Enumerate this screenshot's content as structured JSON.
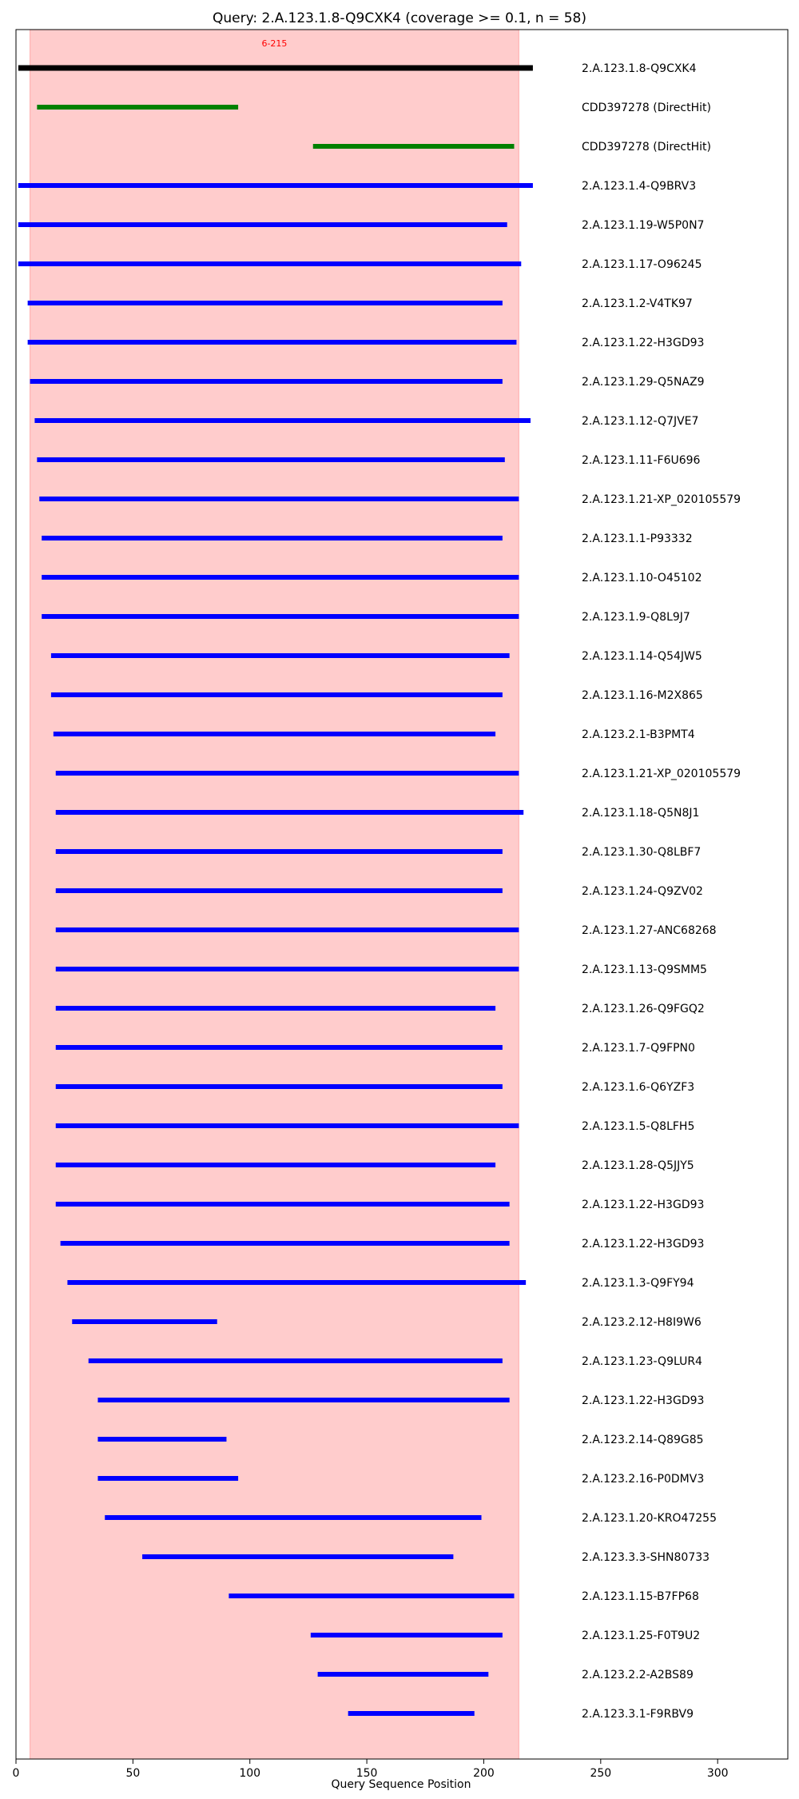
{
  "chart_data": {
    "type": "bar",
    "title": "Query: 2.A.123.1.8-Q9CXK4 (coverage >= 0.1, n = 58)",
    "xlabel": "Query Sequence Position",
    "ylabel": "",
    "xlim": [
      0,
      330
    ],
    "xticks": [
      0,
      50,
      100,
      150,
      200,
      250,
      300
    ],
    "grid": false,
    "highlight_region": {
      "start": 6,
      "end": 215,
      "label": "6-215",
      "color": "#ff0000"
    },
    "colors": {
      "query": "#000000",
      "direct_hit": "#008000",
      "hit": "#0000ff"
    },
    "rows": [
      {
        "label": "2.A.123.1.8-Q9CXK4",
        "start": 1,
        "end": 221,
        "kind": "query"
      },
      {
        "label": "CDD397278 (DirectHit)",
        "start": 9,
        "end": 95,
        "kind": "direct_hit"
      },
      {
        "label": "CDD397278 (DirectHit)",
        "start": 127,
        "end": 213,
        "kind": "direct_hit"
      },
      {
        "label": "2.A.123.1.4-Q9BRV3",
        "start": 1,
        "end": 221,
        "kind": "hit"
      },
      {
        "label": "2.A.123.1.19-W5P0N7",
        "start": 1,
        "end": 210,
        "kind": "hit"
      },
      {
        "label": "2.A.123.1.17-O96245",
        "start": 1,
        "end": 216,
        "kind": "hit"
      },
      {
        "label": "2.A.123.1.2-V4TK97",
        "start": 5,
        "end": 208,
        "kind": "hit"
      },
      {
        "label": "2.A.123.1.22-H3GD93",
        "start": 5,
        "end": 214,
        "kind": "hit"
      },
      {
        "label": "2.A.123.1.29-Q5NAZ9",
        "start": 6,
        "end": 208,
        "kind": "hit"
      },
      {
        "label": "2.A.123.1.12-Q7JVE7",
        "start": 8,
        "end": 220,
        "kind": "hit"
      },
      {
        "label": "2.A.123.1.11-F6U696",
        "start": 9,
        "end": 209,
        "kind": "hit"
      },
      {
        "label": "2.A.123.1.21-XP_020105579",
        "start": 10,
        "end": 215,
        "kind": "hit"
      },
      {
        "label": "2.A.123.1.1-P93332",
        "start": 11,
        "end": 208,
        "kind": "hit"
      },
      {
        "label": "2.A.123.1.10-O45102",
        "start": 11,
        "end": 215,
        "kind": "hit"
      },
      {
        "label": "2.A.123.1.9-Q8L9J7",
        "start": 11,
        "end": 215,
        "kind": "hit"
      },
      {
        "label": "2.A.123.1.14-Q54JW5",
        "start": 15,
        "end": 211,
        "kind": "hit"
      },
      {
        "label": "2.A.123.1.16-M2X865",
        "start": 15,
        "end": 208,
        "kind": "hit"
      },
      {
        "label": "2.A.123.2.1-B3PMT4",
        "start": 16,
        "end": 205,
        "kind": "hit"
      },
      {
        "label": "2.A.123.1.21-XP_020105579",
        "start": 17,
        "end": 215,
        "kind": "hit"
      },
      {
        "label": "2.A.123.1.18-Q5N8J1",
        "start": 17,
        "end": 217,
        "kind": "hit"
      },
      {
        "label": "2.A.123.1.30-Q8LBF7",
        "start": 17,
        "end": 208,
        "kind": "hit"
      },
      {
        "label": "2.A.123.1.24-Q9ZV02",
        "start": 17,
        "end": 208,
        "kind": "hit"
      },
      {
        "label": "2.A.123.1.27-ANC68268",
        "start": 17,
        "end": 215,
        "kind": "hit"
      },
      {
        "label": "2.A.123.1.13-Q9SMM5",
        "start": 17,
        "end": 215,
        "kind": "hit"
      },
      {
        "label": "2.A.123.1.26-Q9FGQ2",
        "start": 17,
        "end": 205,
        "kind": "hit"
      },
      {
        "label": "2.A.123.1.7-Q9FPN0",
        "start": 17,
        "end": 208,
        "kind": "hit"
      },
      {
        "label": "2.A.123.1.6-Q6YZF3",
        "start": 17,
        "end": 208,
        "kind": "hit"
      },
      {
        "label": "2.A.123.1.5-Q8LFH5",
        "start": 17,
        "end": 215,
        "kind": "hit"
      },
      {
        "label": "2.A.123.1.28-Q5JJY5",
        "start": 17,
        "end": 205,
        "kind": "hit"
      },
      {
        "label": "2.A.123.1.22-H3GD93",
        "start": 17,
        "end": 211,
        "kind": "hit"
      },
      {
        "label": "2.A.123.1.22-H3GD93",
        "start": 19,
        "end": 211,
        "kind": "hit"
      },
      {
        "label": "2.A.123.1.3-Q9FY94",
        "start": 22,
        "end": 218,
        "kind": "hit"
      },
      {
        "label": "2.A.123.2.12-H8I9W6",
        "start": 24,
        "end": 86,
        "kind": "hit"
      },
      {
        "label": "2.A.123.1.23-Q9LUR4",
        "start": 31,
        "end": 208,
        "kind": "hit"
      },
      {
        "label": "2.A.123.1.22-H3GD93",
        "start": 35,
        "end": 211,
        "kind": "hit"
      },
      {
        "label": "2.A.123.2.14-Q89G85",
        "start": 35,
        "end": 90,
        "kind": "hit"
      },
      {
        "label": "2.A.123.2.16-P0DMV3",
        "start": 35,
        "end": 95,
        "kind": "hit"
      },
      {
        "label": "2.A.123.1.20-KRO47255",
        "start": 38,
        "end": 199,
        "kind": "hit"
      },
      {
        "label": "2.A.123.3.3-SHN80733",
        "start": 54,
        "end": 187,
        "kind": "hit"
      },
      {
        "label": "2.A.123.1.15-B7FP68",
        "start": 91,
        "end": 213,
        "kind": "hit"
      },
      {
        "label": "2.A.123.1.25-F0T9U2",
        "start": 126,
        "end": 208,
        "kind": "hit"
      },
      {
        "label": "2.A.123.2.2-A2BS89",
        "start": 129,
        "end": 202,
        "kind": "hit"
      },
      {
        "label": "2.A.123.3.1-F9RBV9",
        "start": 142,
        "end": 196,
        "kind": "hit"
      }
    ]
  }
}
